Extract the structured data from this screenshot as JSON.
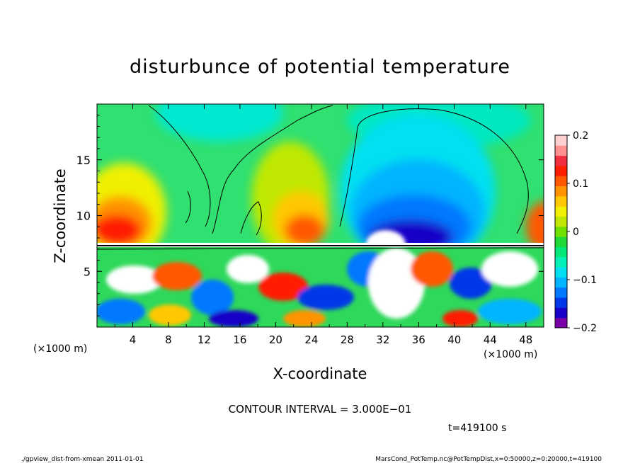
{
  "chart_data": {
    "type": "heatmap",
    "title": "disturbunce of potential temperature",
    "xlabel": "X-coordinate",
    "ylabel": "Z-coordinate",
    "x_unit": "(×1000 m)",
    "z_unit": "(×1000 m)",
    "xlim": [
      0,
      50
    ],
    "ylim": [
      0,
      20
    ],
    "x_ticks": [
      "4",
      "8",
      "12",
      "16",
      "20",
      "24",
      "28",
      "32",
      "36",
      "40",
      "44",
      "48"
    ],
    "y_ticks": [
      "5",
      "10",
      "15"
    ],
    "colorbar": {
      "range": [
        -0.2,
        0.2
      ],
      "tick_labels": [
        "0.2",
        "0.1",
        "0",
        "−0.1",
        "−0.2"
      ],
      "colors": [
        "#7a00a8",
        "#1800c8",
        "#0038e8",
        "#0078ff",
        "#00b4ff",
        "#00e0f0",
        "#00f0b8",
        "#00e878",
        "#20d838",
        "#70e000",
        "#c0e800",
        "#f0f000",
        "#ffc800",
        "#ff9400",
        "#ff5800",
        "#ff1e00",
        "#f03040",
        "#ff9090",
        "#ffd0d0"
      ]
    },
    "contour_interval": "CONTOUR INTERVAL = 3.000E−01",
    "time_label": "t=419100 s",
    "footer_left": "./gpview_dist-from-xmean  2011-01-01",
    "footer_right": "MarsCond_PotTemp.nc@PotTempDist,x=0:50000,z=0:20000,t=419100"
  }
}
